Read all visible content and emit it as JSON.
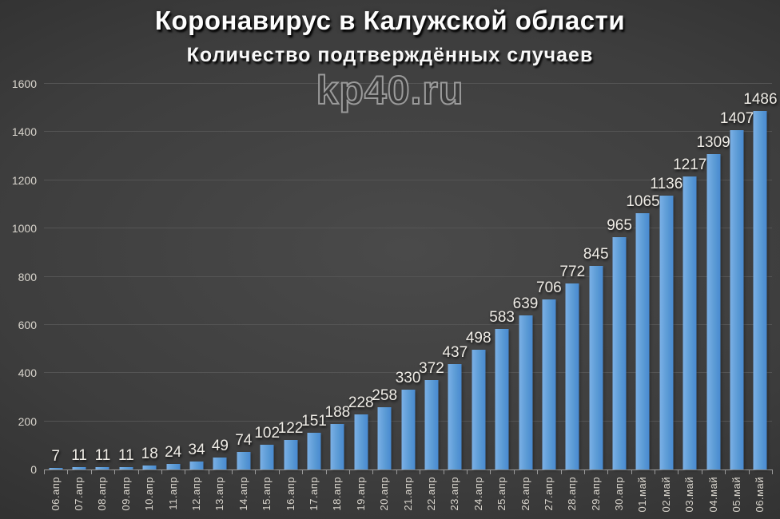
{
  "header": {
    "title": "Коронавирус в Калужской области",
    "subtitle": "Количество подтверждённых случаев"
  },
  "watermark": {
    "text": "kp40.ru"
  },
  "chart_data": {
    "type": "bar",
    "title": "Коронавирус в Калужской области",
    "subtitle": "Количество подтверждённых случаев",
    "categories": [
      "06.апр",
      "07.апр",
      "08.апр",
      "09.апр",
      "10.апр",
      "11.апр",
      "12.апр",
      "13.апр",
      "14.апр",
      "15.апр",
      "16.апр",
      "17.апр",
      "18.апр",
      "19.апр",
      "20.апр",
      "21.апр",
      "22.апр",
      "23.апр",
      "24.апр",
      "25.апр",
      "26.апр",
      "27.апр",
      "28.апр",
      "29.апр",
      "30.апр",
      "01.май",
      "02.май",
      "03.май",
      "04.май",
      "05.май",
      "06.май"
    ],
    "values": [
      7,
      11,
      11,
      11,
      18,
      24,
      34,
      49,
      74,
      102,
      122,
      151,
      188,
      228,
      258,
      330,
      372,
      437,
      498,
      583,
      639,
      706,
      772,
      845,
      965,
      1065,
      1136,
      1217,
      1309,
      1407,
      1486
    ],
    "xlabel": "",
    "ylabel": "",
    "ylim": [
      0,
      1600
    ],
    "ytick_interval": 200,
    "yticks": [
      0,
      200,
      400,
      600,
      800,
      1000,
      1200,
      1400,
      1600
    ],
    "grid": true,
    "legend": false,
    "value_labels": true,
    "bar_color": "#5b9bd5"
  },
  "colors": {
    "bar_fill_light": "#7bb0e6",
    "bar_fill_mid": "#5b9bd5",
    "bar_fill_dark": "#4889d0",
    "grid_line": "#545454",
    "axis_line": "#9a9a9a",
    "tick_label": "#d9d5cd",
    "value_label": "#efece6",
    "title_text": "#fdfdfd",
    "watermark_fill": "#3a3a3a",
    "watermark_outline": "#9b9b9b",
    "background_center": "#4a4a4a",
    "background_edge": "#252525"
  }
}
